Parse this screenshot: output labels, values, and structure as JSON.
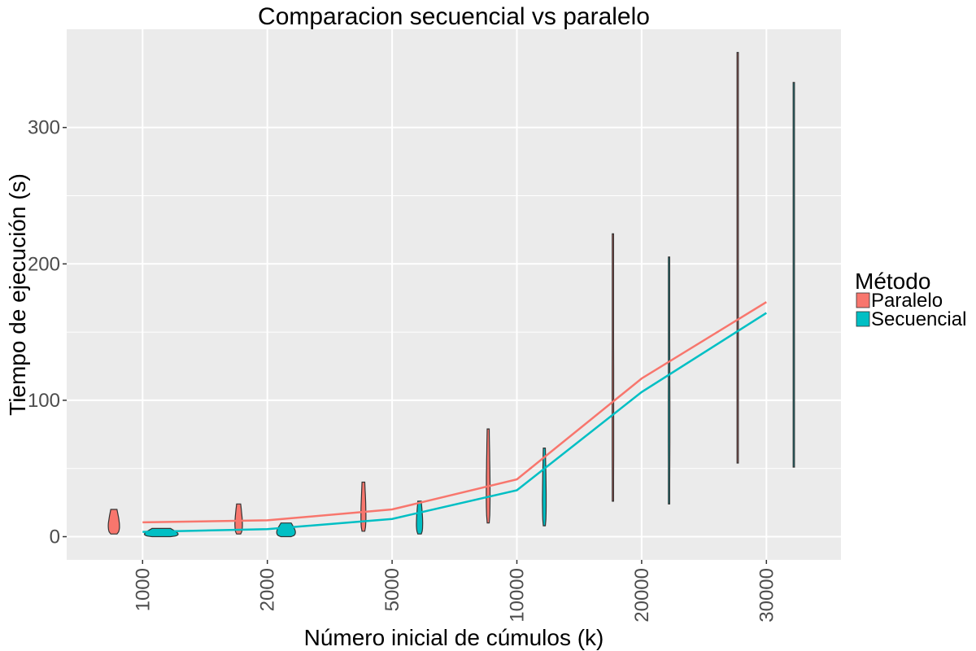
{
  "chart_data": {
    "type": "line",
    "title": "Comparacion secuencial vs paralelo",
    "xlabel": "Número inicial de cúmulos (k)",
    "ylabel": "Tiempo de ejecución (s)",
    "categories": [
      "1000",
      "2000",
      "5000",
      "10000",
      "20000",
      "30000"
    ],
    "yticks": [
      0,
      100,
      200,
      300
    ],
    "ylim": [
      -17,
      372
    ],
    "grid": true,
    "legend": {
      "title": "Método",
      "position": "right",
      "entries": [
        "Paralelo",
        "Secuencial"
      ]
    },
    "series": [
      {
        "name": "Paralelo",
        "color": "#F8766D",
        "values": [
          10.5,
          12,
          20,
          42,
          116,
          172
        ]
      },
      {
        "name": "Secuencial",
        "color": "#00BFC4",
        "values": [
          3.5,
          5.5,
          13,
          34,
          106,
          164
        ]
      }
    ],
    "violins": [
      {
        "series": "Paralelo",
        "category": "1000",
        "min": 2,
        "max": 20,
        "offset": -0.23,
        "width": 0.09
      },
      {
        "series": "Secuencial",
        "category": "1000",
        "min": 0,
        "max": 6,
        "offset": 0.15,
        "width": 0.27
      },
      {
        "series": "Paralelo",
        "category": "2000",
        "min": 2,
        "max": 24,
        "offset": -0.23,
        "width": 0.06
      },
      {
        "series": "Secuencial",
        "category": "2000",
        "min": 0,
        "max": 10,
        "offset": 0.15,
        "width": 0.15
      },
      {
        "series": "Paralelo",
        "category": "5000",
        "min": 4,
        "max": 40,
        "offset": -0.23,
        "width": 0.04
      },
      {
        "series": "Secuencial",
        "category": "5000",
        "min": 2,
        "max": 26,
        "offset": 0.22,
        "width": 0.05
      },
      {
        "series": "Paralelo",
        "category": "10000",
        "min": 10,
        "max": 79,
        "offset": -0.23,
        "width": 0.03
      },
      {
        "series": "Secuencial",
        "category": "10000",
        "min": 8,
        "max": 65,
        "offset": 0.22,
        "width": 0.03
      },
      {
        "series": "Paralelo",
        "category": "20000",
        "min": 26,
        "max": 222,
        "offset": -0.23,
        "width": 0.012
      },
      {
        "series": "Secuencial",
        "category": "20000",
        "min": 24,
        "max": 205,
        "offset": 0.22,
        "width": 0.012
      },
      {
        "series": "Paralelo",
        "category": "30000",
        "min": 54,
        "max": 355,
        "offset": -0.23,
        "width": 0.008
      },
      {
        "series": "Secuencial",
        "category": "30000",
        "min": 51,
        "max": 333,
        "offset": 0.22,
        "width": 0.008
      }
    ]
  }
}
